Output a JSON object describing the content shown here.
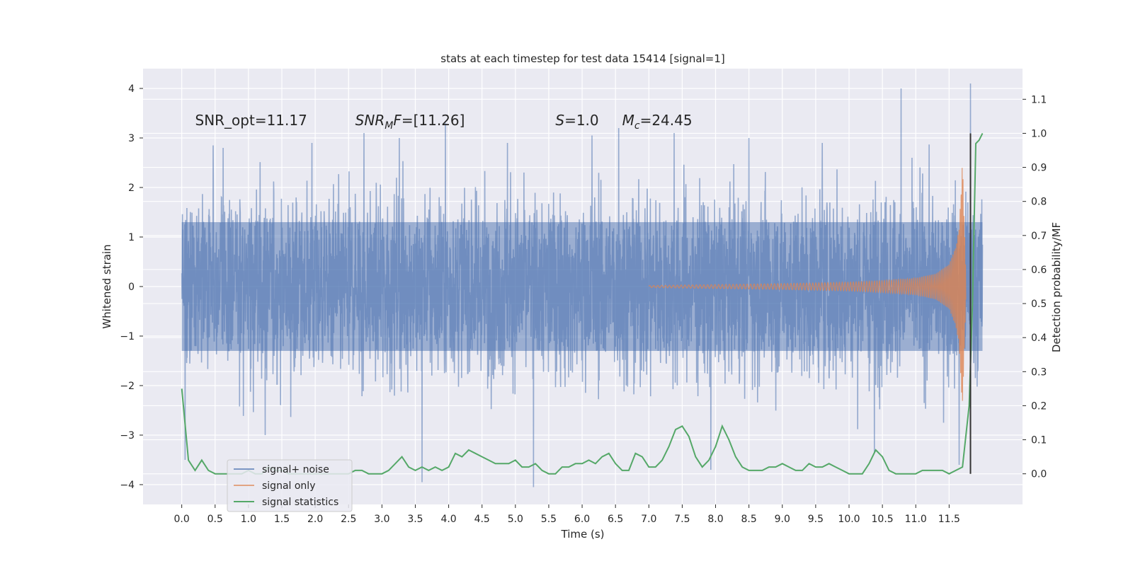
{
  "chart_data": {
    "type": "line",
    "title": "stats at each timestep for test data 15414 [signal=1]",
    "xlabel": "Time (s)",
    "ylabel": "Whitened strain",
    "y2label": "Detection probability/MF",
    "xlim": [
      -0.58,
      12.6
    ],
    "ylim": [
      -4.4,
      4.4
    ],
    "y2lim": [
      -0.09,
      1.19
    ],
    "x_ticks": [
      0.0,
      0.5,
      1.0,
      1.5,
      2.0,
      2.5,
      3.0,
      3.5,
      4.0,
      4.5,
      5.0,
      5.5,
      6.0,
      6.5,
      7.0,
      7.5,
      8.0,
      8.5,
      9.0,
      9.5,
      10.0,
      10.5,
      11.0,
      11.5
    ],
    "x_tick_labels": [
      "0.0",
      "0.5",
      "1.0",
      "1.5",
      "2.0",
      "2.5",
      "3.0",
      "3.5",
      "4.0",
      "4.5",
      "5.0",
      "5.5",
      "6.0",
      "6.5",
      "7.0",
      "7.5",
      "8.0",
      "8.5",
      "9.0",
      "9.5",
      "10.0",
      "10.5",
      "11.0",
      "11.5"
    ],
    "y_ticks": [
      -4,
      -3,
      -2,
      -1,
      0,
      1,
      2,
      3,
      4
    ],
    "y_tick_labels": [
      "−4",
      "−3",
      "−2",
      "−1",
      "0",
      "1",
      "2",
      "3",
      "4"
    ],
    "y2_ticks": [
      0.0,
      0.1,
      0.2,
      0.3,
      0.4,
      0.5,
      0.6,
      0.7,
      0.8,
      0.9,
      1.0,
      1.1
    ],
    "y2_tick_labels": [
      "0.0",
      "0.1",
      "0.2",
      "0.3",
      "0.4",
      "0.5",
      "0.6",
      "0.7",
      "0.8",
      "0.9",
      "1.0",
      "1.1"
    ],
    "grid": true,
    "legend_position": "lower-left",
    "series": [
      {
        "name": "signal+ noise",
        "color": "#4c72b0",
        "axis": "left",
        "description": "whitened strain, noise-dominated",
        "x_range": [
          0.0,
          12.0
        ],
        "typical_envelope": [
          -2.0,
          2.0
        ],
        "peaks": [
          {
            "x": 0.05,
            "y": -3.5
          },
          {
            "x": 0.47,
            "y": 2.85
          },
          {
            "x": 0.62,
            "y": 2.8
          },
          {
            "x": 1.25,
            "y": -3.0
          },
          {
            "x": 1.95,
            "y": 2.9
          },
          {
            "x": 2.73,
            "y": 3.1
          },
          {
            "x": 3.26,
            "y": 3.0
          },
          {
            "x": 3.6,
            "y": -3.95
          },
          {
            "x": 3.95,
            "y": 3.3
          },
          {
            "x": 4.88,
            "y": 2.9
          },
          {
            "x": 5.27,
            "y": -4.05
          },
          {
            "x": 6.15,
            "y": 3.05
          },
          {
            "x": 6.55,
            "y": 3.2
          },
          {
            "x": 7.38,
            "y": 3.1
          },
          {
            "x": 7.93,
            "y": -3.7
          },
          {
            "x": 8.5,
            "y": 3.0
          },
          {
            "x": 9.6,
            "y": 2.9
          },
          {
            "x": 10.38,
            "y": -3.35
          },
          {
            "x": 10.78,
            "y": 4.0
          },
          {
            "x": 11.65,
            "y": -3.6
          },
          {
            "x": 11.82,
            "y": 4.1
          }
        ]
      },
      {
        "name": "signal only",
        "color": "#dd8452",
        "axis": "left",
        "description": "inspiral chirp, amplitude rising to merger",
        "envelope_x": [
          7.0,
          8.0,
          9.0,
          10.0,
          10.5,
          11.0,
          11.3,
          11.5,
          11.6,
          11.65,
          11.7,
          11.75
        ],
        "envelope_amp": [
          0.02,
          0.04,
          0.06,
          0.09,
          0.12,
          0.17,
          0.26,
          0.45,
          0.8,
          1.2,
          2.55,
          0.3
        ]
      },
      {
        "name": "signal statistics",
        "color": "#55a868",
        "axis": "right",
        "x": [
          0.0,
          0.1,
          0.2,
          0.3,
          0.4,
          0.5,
          0.6,
          0.7,
          0.8,
          0.9,
          1.0,
          1.1,
          1.2,
          1.3,
          1.4,
          1.5,
          1.6,
          1.7,
          1.8,
          1.9,
          2.0,
          2.1,
          2.2,
          2.3,
          2.4,
          2.5,
          2.6,
          2.7,
          2.8,
          2.9,
          3.0,
          3.1,
          3.2,
          3.3,
          3.4,
          3.5,
          3.6,
          3.7,
          3.8,
          3.9,
          4.0,
          4.1,
          4.2,
          4.3,
          4.4,
          4.5,
          4.6,
          4.7,
          4.8,
          4.9,
          5.0,
          5.1,
          5.2,
          5.3,
          5.4,
          5.5,
          5.6,
          5.7,
          5.8,
          5.9,
          6.0,
          6.1,
          6.2,
          6.3,
          6.4,
          6.5,
          6.6,
          6.7,
          6.8,
          6.9,
          7.0,
          7.1,
          7.2,
          7.3,
          7.4,
          7.5,
          7.6,
          7.7,
          7.8,
          7.9,
          8.0,
          8.1,
          8.2,
          8.3,
          8.4,
          8.5,
          8.6,
          8.7,
          8.8,
          8.9,
          9.0,
          9.1,
          9.2,
          9.3,
          9.4,
          9.5,
          9.6,
          9.7,
          9.8,
          9.9,
          10.0,
          10.1,
          10.2,
          10.3,
          10.4,
          10.5,
          10.6,
          10.7,
          10.8,
          10.9,
          11.0,
          11.1,
          11.2,
          11.3,
          11.4,
          11.5,
          11.6,
          11.7,
          11.8,
          11.85,
          11.9,
          11.95,
          12.0
        ],
        "values": [
          0.25,
          0.04,
          0.01,
          0.04,
          0.01,
          0.0,
          0.0,
          0.0,
          0.0,
          0.0,
          0.01,
          0.0,
          0.0,
          0.02,
          0.01,
          0.01,
          0.0,
          0.0,
          0.0,
          0.0,
          0.0,
          0.0,
          0.0,
          0.0,
          0.0,
          0.0,
          0.01,
          0.01,
          0.0,
          0.0,
          0.0,
          0.01,
          0.03,
          0.05,
          0.02,
          0.01,
          0.02,
          0.01,
          0.02,
          0.01,
          0.02,
          0.06,
          0.05,
          0.07,
          0.06,
          0.05,
          0.04,
          0.03,
          0.03,
          0.03,
          0.04,
          0.02,
          0.02,
          0.03,
          0.01,
          0.0,
          0.0,
          0.02,
          0.02,
          0.03,
          0.03,
          0.04,
          0.03,
          0.05,
          0.06,
          0.03,
          0.01,
          0.01,
          0.06,
          0.05,
          0.02,
          0.02,
          0.04,
          0.08,
          0.13,
          0.14,
          0.11,
          0.05,
          0.02,
          0.04,
          0.08,
          0.14,
          0.1,
          0.05,
          0.02,
          0.01,
          0.01,
          0.01,
          0.02,
          0.02,
          0.03,
          0.02,
          0.01,
          0.01,
          0.03,
          0.02,
          0.02,
          0.03,
          0.02,
          0.01,
          0.0,
          0.0,
          0.0,
          0.03,
          0.07,
          0.05,
          0.01,
          0.0,
          0.0,
          0.0,
          0.0,
          0.01,
          0.01,
          0.01,
          0.01,
          0.0,
          0.01,
          0.02,
          0.2,
          0.5,
          0.97,
          0.98,
          1.0
        ]
      }
    ],
    "merger_line": {
      "x": 11.82,
      "y2_from": 0.0,
      "y2_to": 1.0,
      "color": "#333333"
    },
    "annotations": [
      {
        "id": "snr_opt",
        "x": 0.2,
        "y": 3.26,
        "text": "SNR_opt=11.17",
        "mode": "plain"
      },
      {
        "id": "snr_mf",
        "x": 2.6,
        "y": 3.26,
        "base": "SNR",
        "sub": "M",
        "tail": "F=[11.26]",
        "mode": "math"
      },
      {
        "id": "s",
        "x": 5.6,
        "y": 3.26,
        "base": "S",
        "sub": "",
        "tail": "=1.0",
        "mode": "math"
      },
      {
        "id": "mc",
        "x": 6.6,
        "y": 3.26,
        "base": "M",
        "sub": "c",
        "tail": "=24.45",
        "mode": "math"
      }
    ]
  }
}
